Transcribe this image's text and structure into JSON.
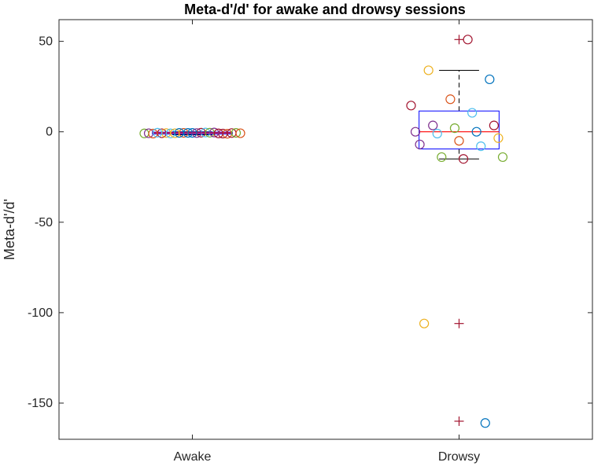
{
  "chart_data": {
    "type": "boxplot",
    "title": "Meta-d'/d' for awake and drowsy sessions",
    "xlabel": "",
    "ylabel": "Meta-d'/d'",
    "categories": [
      "Awake",
      "Drowsy"
    ],
    "ylim": [
      -170,
      62
    ],
    "yticks": [
      50,
      0,
      -50,
      -100,
      -150
    ],
    "ytick_labels": [
      "50",
      "0",
      "-50",
      "-100",
      "-150"
    ],
    "grid": false,
    "box_color": "#0000ff",
    "median_color": "#ff0000",
    "whisker_color": "#000000",
    "outlier_color": "#a2142f",
    "boxes": [
      {
        "category": "Awake",
        "q1": -1.2,
        "median": -0.6,
        "q3": -0.2,
        "whisker_low": -1.6,
        "whisker_high": 0,
        "outliers": []
      },
      {
        "category": "Drowsy",
        "q1": -9.5,
        "median": 0,
        "q3": 11.5,
        "whisker_low": -15,
        "whisker_high": 34,
        "outliers": [
          51,
          -106,
          -160
        ]
      }
    ],
    "points": [
      {
        "category": "Awake",
        "values": [
          -0.5,
          -0.8,
          -1.0,
          -0.6,
          -0.9,
          -0.4,
          -0.7,
          -1.1,
          -0.6,
          -0.8,
          -0.5,
          -0.9,
          -0.7,
          -0.6,
          -1.0,
          -0.4,
          -0.8,
          -0.6,
          -0.7,
          -0.5,
          -0.9,
          -0.6,
          -0.8
        ],
        "colors": [
          "#a2142f",
          "#a2142f",
          "#a2142f",
          "#d95319",
          "#77ac30",
          "#4dbeee",
          "#edb120",
          "#d95319",
          "#0072bd",
          "#7e2f8e",
          "#77ac30",
          "#4dbeee",
          "#a2142f",
          "#0072bd",
          "#d95319",
          "#7e2f8e",
          "#edb120",
          "#77ac30",
          "#7e2f8e",
          "#4dbeee",
          "#a2142f",
          "#0072bd",
          "#d95319"
        ]
      },
      {
        "category": "Drowsy",
        "values": [
          51,
          34,
          29,
          18,
          14.5,
          10.5,
          3.5,
          3.5,
          2,
          0,
          0,
          -1,
          -3.5,
          -5,
          -7,
          -8,
          -14,
          -14,
          -15,
          -106,
          -161
        ],
        "colors": [
          "#a2142f",
          "#edb120",
          "#0072bd",
          "#d95319",
          "#a2142f",
          "#4dbeee",
          "#7e2f8e",
          "#a2142f",
          "#77ac30",
          "#7e2f8e",
          "#0072bd",
          "#4dbeee",
          "#edb120",
          "#d95319",
          "#7e2f8e",
          "#4dbeee",
          "#77ac30",
          "#77ac30",
          "#a2142f",
          "#edb120",
          "#0072bd"
        ]
      }
    ]
  }
}
